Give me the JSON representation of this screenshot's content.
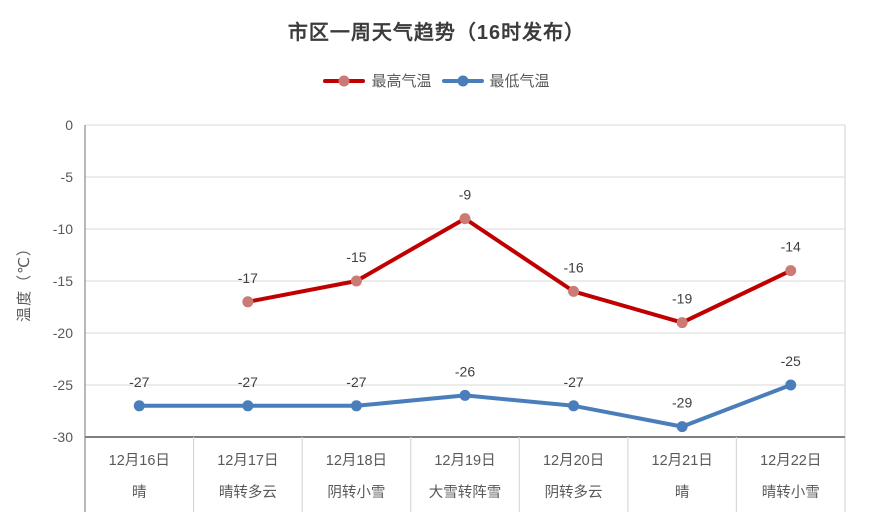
{
  "chart_data": {
    "type": "line",
    "title": "市区一周天气趋势（16时发布）",
    "ylabel": "温度（℃）",
    "ylim": [
      -30,
      0
    ],
    "yticks": [
      0,
      -5,
      -10,
      -15,
      -20,
      -25,
      -30
    ],
    "grid": true,
    "legend_position": "top",
    "categories": [
      {
        "date": "12月16日",
        "weather": "晴"
      },
      {
        "date": "12月17日",
        "weather": "晴转多云"
      },
      {
        "date": "12月18日",
        "weather": "阴转小雪"
      },
      {
        "date": "12月19日",
        "weather": "大雪转阵雪"
      },
      {
        "date": "12月20日",
        "weather": "阴转多云"
      },
      {
        "date": "12月21日",
        "weather": "晴"
      },
      {
        "date": "12月22日",
        "weather": "晴转小雪"
      }
    ],
    "series": [
      {
        "key": "max-temp",
        "name": "最高气温",
        "color": "#c00000",
        "marker_color": "#cb7a74",
        "values": [
          null,
          -17,
          -15,
          -9,
          -16,
          -19,
          -14
        ]
      },
      {
        "key": "min-temp",
        "name": "最低气温",
        "color": "#4a7ebb",
        "marker_color": "#4a7ebb",
        "values": [
          -27,
          -27,
          -27,
          -26,
          -27,
          -29,
          -25
        ]
      }
    ],
    "colors": {
      "gridline": "#d9d9d9",
      "axis_left": "#9b9b9b",
      "axis_bottom": "#7f7f7f",
      "tick_label": "#595959",
      "data_label": "#404040",
      "category_label": "#595959"
    }
  }
}
